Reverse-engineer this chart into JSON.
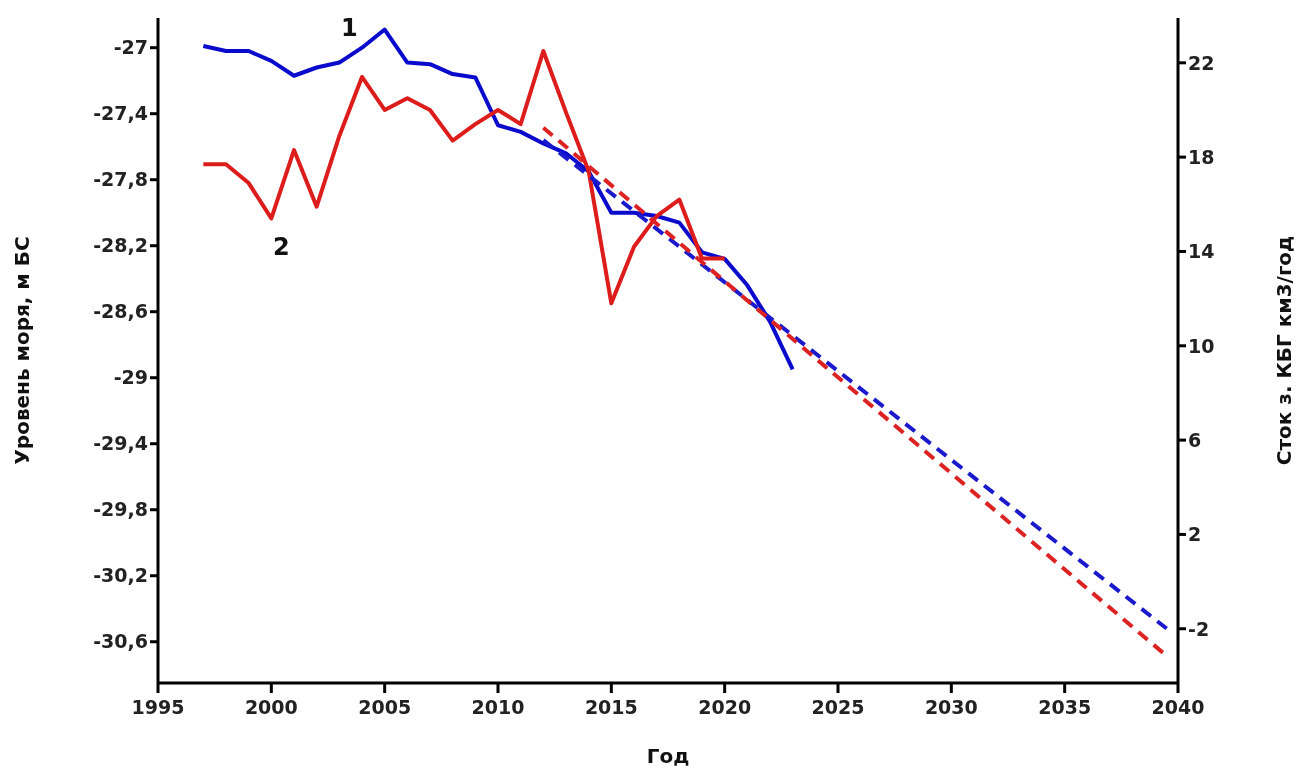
{
  "chart_data": {
    "type": "line",
    "xlabel": "Год",
    "ylabel": "Уровень моря, м БС",
    "y2label": "Сток з. КБГ км3/год",
    "xlim": [
      1995,
      2040
    ],
    "xticks": [
      1995,
      2000,
      2005,
      2010,
      2015,
      2020,
      2025,
      2030,
      2035,
      2040
    ],
    "ylim": [
      -30.85,
      -26.82
    ],
    "yticks": [
      -27,
      {
        "value": -27.4,
        "label": "-27,4"
      },
      {
        "value": -27.8,
        "label": "-27,8"
      },
      {
        "value": -28.2,
        "label": "-28,2"
      },
      {
        "value": -28.6,
        "label": "-28,6"
      },
      -29,
      {
        "value": -29.4,
        "label": "-29,4"
      },
      {
        "value": -29.8,
        "label": "-29,8"
      },
      {
        "value": -30.2,
        "label": "-30,2"
      },
      {
        "value": -30.6,
        "label": "-30,6"
      }
    ],
    "y2lim": [
      -4.3,
      23.9
    ],
    "y2ticks": [
      22,
      18,
      14,
      10,
      6,
      2,
      -2
    ],
    "series": [
      {
        "name": "1",
        "color": "#0a0acc",
        "x": [
          1997,
          1998,
          1999,
          2000,
          2001,
          2002,
          2003,
          2004,
          2005,
          2006,
          2007,
          2008,
          2009,
          2010,
          2011,
          2012,
          2013,
          2014,
          2015,
          2016,
          2017,
          2018,
          2019,
          2020,
          2021,
          2022,
          2023
        ],
        "values": [
          -26.99,
          -27.02,
          -27.02,
          -27.08,
          -27.17,
          -27.12,
          -27.09,
          -27.0,
          -26.89,
          -27.09,
          -27.1,
          -27.16,
          -27.18,
          -27.47,
          -27.51,
          -27.58,
          -27.64,
          -27.75,
          -28.0,
          -28.0,
          -28.02,
          -28.06,
          -28.24,
          -28.28,
          -28.44,
          -28.66,
          -28.95
        ]
      },
      {
        "name": "2",
        "color": "#dd1c1c",
        "axis": "y2",
        "x": [
          1997,
          1998,
          1999,
          2000,
          2001,
          2002,
          2003,
          2004,
          2005,
          2006,
          2007,
          2008,
          2009,
          2010,
          2011,
          2012,
          2013,
          2014,
          2015,
          2016,
          2017,
          2018,
          2019,
          2020
        ],
        "values": [
          17.7,
          17.7,
          16.9,
          15.4,
          18.3,
          15.9,
          18.9,
          21.4,
          20.0,
          20.5,
          20.0,
          18.7,
          19.4,
          20.0,
          19.4,
          22.5,
          19.9,
          17.4,
          11.8,
          14.2,
          15.5,
          16.2,
          13.7,
          13.7
        ]
      },
      {
        "type": "line",
        "line_style": "dashed",
        "color": "#1a1acc",
        "x": [
          2012,
          2039.5
        ],
        "values": [
          -27.56,
          -30.52
        ]
      },
      {
        "type": "line",
        "line_style": "dashed",
        "axis": "y2",
        "color": "#dd2222",
        "x": [
          2012,
          2039.5
        ],
        "values": [
          19.25,
          -3.15
        ]
      }
    ]
  }
}
